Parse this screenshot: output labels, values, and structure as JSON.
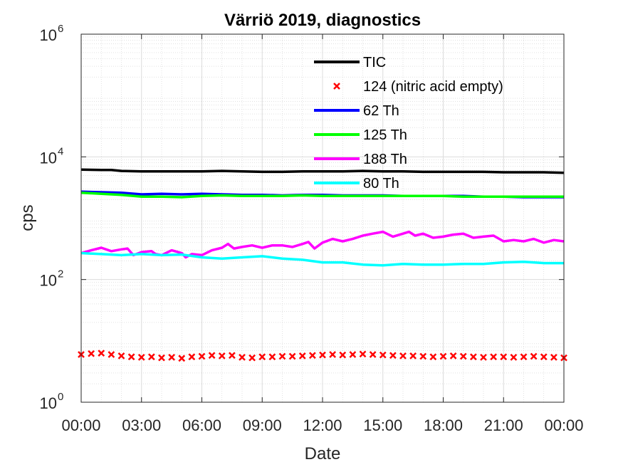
{
  "chart_data": {
    "type": "line",
    "title": "Värriö 2019, diagnostics",
    "xlabel": "Date",
    "ylabel": "cps",
    "yscale": "log",
    "ylim": [
      1,
      1000000
    ],
    "xlim": [
      0,
      24
    ],
    "grid": true,
    "minor_grid": true,
    "legend_position": "top-right",
    "x_ticks": [
      {
        "hour": 0,
        "label": "00:00"
      },
      {
        "hour": 3,
        "label": "03:00"
      },
      {
        "hour": 6,
        "label": "06:00"
      },
      {
        "hour": 9,
        "label": "09:00"
      },
      {
        "hour": 12,
        "label": "12:00"
      },
      {
        "hour": 15,
        "label": "15:00"
      },
      {
        "hour": 18,
        "label": "18:00"
      },
      {
        "hour": 21,
        "label": "21:00"
      },
      {
        "hour": 24,
        "label": "00:00"
      }
    ],
    "y_ticks": [
      {
        "value": 1,
        "base": "10",
        "exp": "0"
      },
      {
        "value": 100,
        "base": "10",
        "exp": "2"
      },
      {
        "value": 10000,
        "base": "10",
        "exp": "4"
      },
      {
        "value": 1000000,
        "base": "10",
        "exp": "6"
      }
    ],
    "series": [
      {
        "name": "TIC",
        "color": "#000000",
        "style": "line",
        "x": [
          0,
          1,
          1.5,
          2,
          3,
          4,
          5,
          6,
          7,
          8,
          9,
          10,
          11,
          12,
          13,
          14,
          15,
          16,
          17,
          18,
          19,
          20,
          21,
          22,
          23,
          24
        ],
        "y": [
          6200,
          6100,
          6100,
          5900,
          5800,
          5800,
          5800,
          5800,
          5900,
          5800,
          5700,
          5700,
          5800,
          5800,
          5800,
          5900,
          5800,
          5800,
          5700,
          5700,
          5700,
          5700,
          5600,
          5600,
          5600,
          5500
        ]
      },
      {
        "name": "124 (nitric acid empty)",
        "color": "#ff0000",
        "style": "marker",
        "marker": "x",
        "x": [
          0,
          0.5,
          1,
          1.5,
          2,
          2.5,
          3,
          3.5,
          4,
          4.5,
          5,
          5.5,
          6,
          6.5,
          7,
          7.5,
          8,
          8.5,
          9,
          9.5,
          10,
          10.5,
          11,
          11.5,
          12,
          12.5,
          13,
          13.5,
          14,
          14.5,
          15,
          15.5,
          16,
          16.5,
          17,
          17.5,
          18,
          18.5,
          19,
          19.5,
          20,
          20.5,
          21,
          21.5,
          22,
          22.5,
          23,
          23.5,
          24
        ],
        "y": [
          6.0,
          6.2,
          6.3,
          6.0,
          5.7,
          5.5,
          5.4,
          5.5,
          5.3,
          5.4,
          5.2,
          5.5,
          5.6,
          5.8,
          5.7,
          5.8,
          5.4,
          5.3,
          5.5,
          5.5,
          5.6,
          5.6,
          5.7,
          5.8,
          5.9,
          6.0,
          5.9,
          6.0,
          6.1,
          6.0,
          5.9,
          5.8,
          5.7,
          5.7,
          5.6,
          5.5,
          5.6,
          5.7,
          5.6,
          5.5,
          5.4,
          5.5,
          5.5,
          5.4,
          5.5,
          5.6,
          5.5,
          5.4,
          5.3
        ]
      },
      {
        "name": "62 Th",
        "color": "#0000ff",
        "style": "line",
        "x": [
          0,
          1,
          2,
          3,
          4,
          5,
          6,
          7,
          8,
          9,
          10,
          11,
          12,
          13,
          14,
          15,
          16,
          17,
          18,
          19,
          20,
          21,
          22,
          23,
          24
        ],
        "y": [
          2700,
          2650,
          2600,
          2450,
          2500,
          2450,
          2500,
          2450,
          2400,
          2400,
          2350,
          2400,
          2400,
          2350,
          2350,
          2350,
          2300,
          2300,
          2300,
          2300,
          2250,
          2250,
          2200,
          2200,
          2200
        ]
      },
      {
        "name": "125 Th",
        "color": "#00ff00",
        "style": "line",
        "x": [
          0,
          1,
          2,
          3,
          4,
          5,
          6,
          7,
          8,
          9,
          10,
          11,
          12,
          13,
          14,
          15,
          16,
          17,
          18,
          19,
          20,
          21,
          22,
          23,
          24
        ],
        "y": [
          2600,
          2500,
          2400,
          2250,
          2250,
          2200,
          2300,
          2350,
          2300,
          2300,
          2300,
          2350,
          2300,
          2300,
          2300,
          2300,
          2300,
          2300,
          2300,
          2250,
          2250,
          2250,
          2250,
          2250,
          2250
        ]
      },
      {
        "name": "188 Th",
        "color": "#ff00ff",
        "style": "line",
        "x": [
          0,
          0.5,
          1,
          1.5,
          2,
          2.3,
          2.6,
          3,
          3.5,
          3.7,
          4,
          4.5,
          5,
          5.2,
          5.5,
          6,
          6.5,
          7,
          7.3,
          7.6,
          8,
          8.5,
          9,
          9.5,
          10,
          10.5,
          11,
          11.3,
          11.6,
          12,
          12.5,
          13,
          13.5,
          14,
          14.5,
          15,
          15.5,
          16,
          16.3,
          16.6,
          17,
          17.5,
          18,
          18.5,
          19,
          19.5,
          20,
          20.5,
          21,
          21.5,
          22,
          22.5,
          23,
          23.5,
          24
        ],
        "y": [
          270,
          300,
          330,
          290,
          310,
          320,
          250,
          280,
          290,
          260,
          250,
          300,
          270,
          230,
          260,
          250,
          300,
          330,
          380,
          320,
          340,
          360,
          330,
          360,
          360,
          340,
          380,
          410,
          320,
          400,
          460,
          420,
          460,
          520,
          560,
          600,
          500,
          560,
          600,
          520,
          560,
          480,
          500,
          540,
          560,
          480,
          500,
          520,
          420,
          440,
          420,
          460,
          400,
          440,
          420
        ]
      },
      {
        "name": "80 Th",
        "color": "#00ffff",
        "style": "line",
        "x": [
          0,
          1,
          2,
          3,
          4,
          5,
          6,
          7,
          8,
          9,
          10,
          11,
          12,
          13,
          14,
          15,
          16,
          17,
          18,
          19,
          20,
          21,
          22,
          23,
          24
        ],
        "y": [
          270,
          260,
          250,
          260,
          250,
          255,
          230,
          220,
          230,
          240,
          220,
          210,
          190,
          190,
          175,
          170,
          180,
          175,
          175,
          180,
          180,
          190,
          195,
          185,
          185
        ]
      }
    ]
  }
}
